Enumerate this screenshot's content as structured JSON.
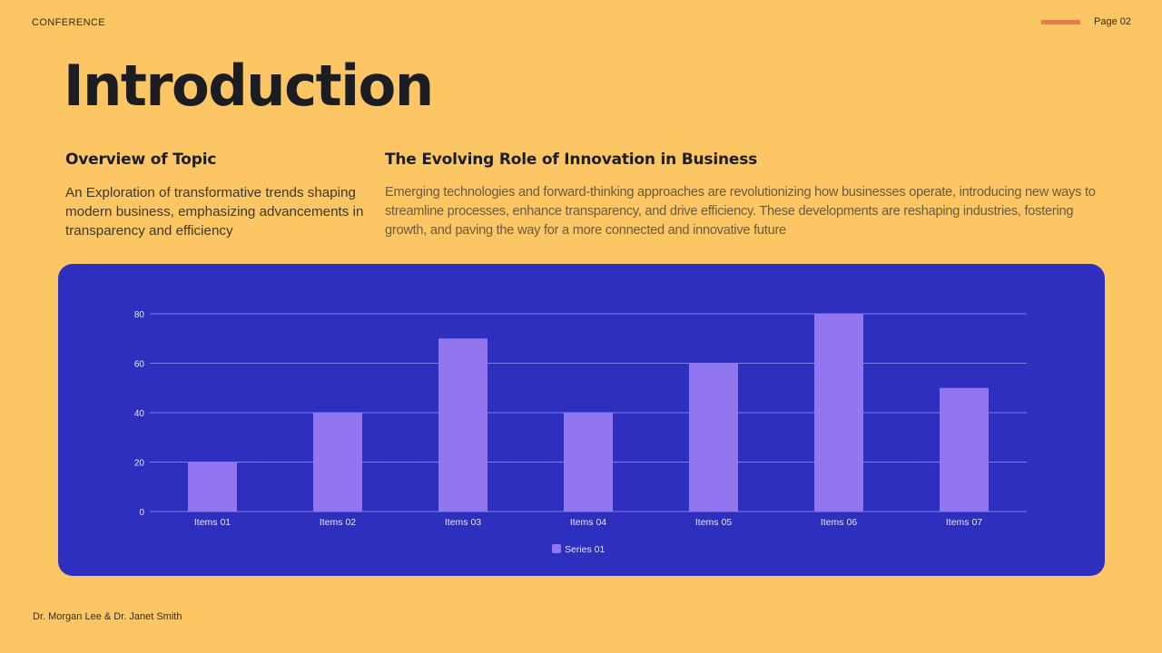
{
  "header": {
    "label": "CONFERENCE",
    "page": "Page 02",
    "accent_color": "#e17f4a"
  },
  "title": "Introduction",
  "left_column": {
    "heading": "Overview of Topic",
    "body": "An Exploration of transformative trends shaping modern business, emphasizing advancements in transparency and efficiency"
  },
  "right_column": {
    "heading": "The Evolving Role of Innovation in Business",
    "body": "Emerging technologies and forward-thinking approaches are revolutionizing how businesses operate, introducing new ways to streamline processes, enhance transparency, and drive efficiency. These developments are reshaping industries, fostering growth, and paving the way for a more connected and innovative future"
  },
  "footer": {
    "authors": "Dr. Morgan Lee & Dr. Janet Smith"
  },
  "colors": {
    "background": "#fcc664",
    "chart_bg": "#2e2fbf",
    "bar": "#9176f0",
    "gridline": "#7f7fe6"
  },
  "chart_data": {
    "type": "bar",
    "title": "",
    "xlabel": "",
    "ylabel": "",
    "categories": [
      "Items 01",
      "Items 02",
      "Items 03",
      "Items 04",
      "Items 05",
      "Items 06",
      "Items 07"
    ],
    "series": [
      {
        "name": "Series 01",
        "color": "#9176f0",
        "values": [
          20,
          40,
          70,
          40,
          60,
          80,
          50
        ]
      }
    ],
    "ylim": [
      0,
      80
    ],
    "yticks": [
      0,
      20,
      40,
      60,
      80
    ],
    "grid": true,
    "legend_position": "bottom"
  }
}
